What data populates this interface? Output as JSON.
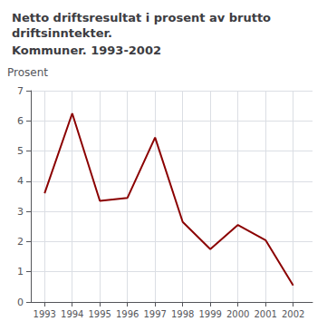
{
  "chart_data": {
    "type": "line",
    "title": "Netto driftsresultat i prosent av brutto driftsinntekter.",
    "subtitle": "Kommuner. 1993-2002",
    "ylabel": "Prosent",
    "x": [
      1993,
      1994,
      1995,
      1996,
      1997,
      1998,
      1999,
      2000,
      2001,
      2002
    ],
    "values": [
      3.6,
      6.25,
      3.35,
      3.45,
      5.45,
      2.65,
      1.75,
      2.55,
      2.05,
      0.55
    ],
    "color": "#8B0000",
    "xlim": [
      1992.5,
      2002.7
    ],
    "xticks": [
      1993,
      1994,
      1995,
      1996,
      1997,
      1998,
      1999,
      2000,
      2001,
      2002
    ],
    "ylim": [
      0,
      7
    ],
    "yticks": [
      0,
      1,
      2,
      3,
      4,
      5,
      6,
      7
    ],
    "grid": true
  }
}
